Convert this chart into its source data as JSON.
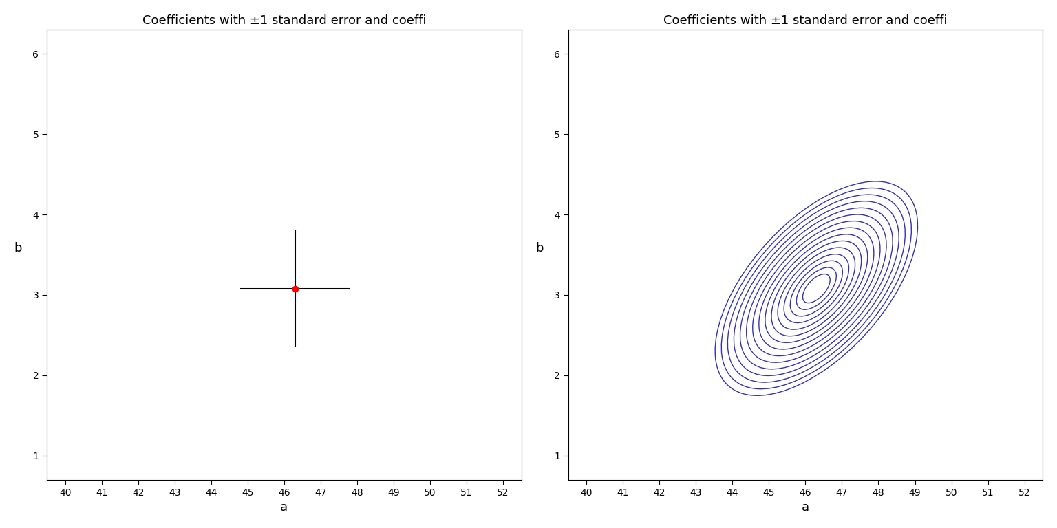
{
  "title": "Coefficients with ±1 standard error and coeffi",
  "xlabel": "a",
  "ylabel": "b",
  "a_hat": 46.3,
  "b_hat": 3.08,
  "se_a": 1.5,
  "se_b": 0.72,
  "xlim": [
    39.5,
    52.5
  ],
  "ylim": [
    0.7,
    6.3
  ],
  "xticks": [
    40,
    41,
    42,
    43,
    44,
    45,
    46,
    47,
    48,
    49,
    50,
    51,
    52
  ],
  "yticks": [
    1,
    2,
    3,
    4,
    5,
    6
  ],
  "point_color": "#ff0000",
  "errorbar_color": "#000000",
  "ellipse_color": "#3333aa",
  "n_contours": 15,
  "cov_aa": 2.25,
  "cov_bb": 0.5184,
  "cov_ab": 0.63,
  "scale_min": 0.25,
  "scale_max": 1.85,
  "bg_color": "#ffffff"
}
